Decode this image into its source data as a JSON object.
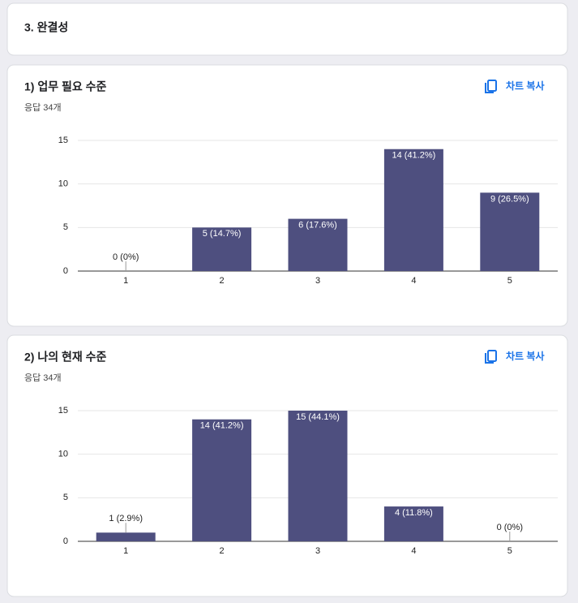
{
  "section": {
    "title": "3. 완결성"
  },
  "chart_data": [
    {
      "type": "bar",
      "title": "1) 업무 필요 수준",
      "subtitle": "응답 34개",
      "button": "차트 복사",
      "categories": [
        "1",
        "2",
        "3",
        "4",
        "5"
      ],
      "values": [
        0,
        5,
        6,
        14,
        9
      ],
      "value_labels": [
        "0 (0%)",
        "5 (14.7%)",
        "6 (17.6%)",
        "14 (41.2%)",
        "9 (26.5%)"
      ],
      "color": "#4e4f7f",
      "ylim": [
        0,
        15
      ],
      "yticks": [
        0,
        5,
        10,
        15
      ],
      "grid": true
    },
    {
      "type": "bar",
      "title": "2) 나의 현재 수준",
      "subtitle": "응답 34개",
      "button": "차트 복사",
      "categories": [
        "1",
        "2",
        "3",
        "4",
        "5"
      ],
      "values": [
        1,
        14,
        15,
        4,
        0
      ],
      "value_labels": [
        "1 (2.9%)",
        "14 (41.2%)",
        "15 (44.1%)",
        "4 (11.8%)",
        "0 (0%)"
      ],
      "color": "#4e4f7f",
      "ylim": [
        0,
        15
      ],
      "yticks": [
        0,
        5,
        10,
        15
      ],
      "grid": true
    }
  ]
}
